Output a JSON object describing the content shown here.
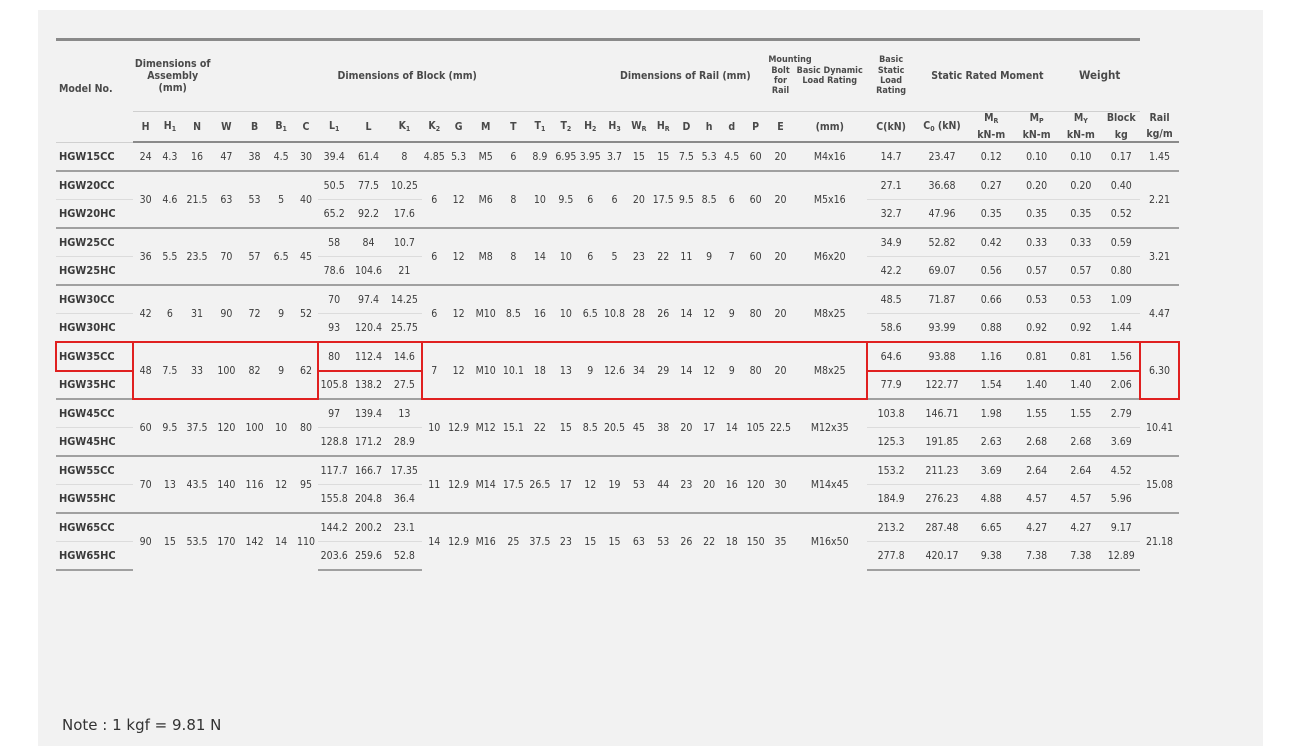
{
  "header": {
    "model_no": "Model No.",
    "assembly": "Dimensions of Assembly (mm)",
    "block": "Dimensions of Block (mm)",
    "rail": "Dimensions of Rail (mm)",
    "bolt": "Mounting Bolt for Rail",
    "dynamic": "Basic Dynamic Load Rating",
    "static": "Basic Static Load Rating",
    "moment": "Static Rated Moment",
    "weight": "Weight",
    "bolt_unit": "(mm)",
    "dynamic_unit": "C(kN)",
    "static_unit": "C0 (kN)",
    "moment_unit": "kN-m",
    "block_label": "Block",
    "rail_label": "Rail",
    "block_unit": "kg",
    "rail_unit": "kg/m",
    "cols": [
      "H",
      "H1",
      "N",
      "W",
      "B",
      "B1",
      "C",
      "L1",
      "L",
      "K1",
      "K2",
      "G",
      "M",
      "T",
      "T1",
      "T2",
      "H2",
      "H3",
      "WR",
      "HR",
      "D",
      "h",
      "d",
      "P",
      "E"
    ],
    "moments": [
      "MR",
      "MP",
      "MY"
    ]
  },
  "groups": [
    {
      "shared": [
        "24",
        "4.3",
        "16",
        "47",
        "38",
        "4.5",
        "30"
      ],
      "shared2": [
        "4.85",
        "5.3",
        "M5",
        "6",
        "8.9",
        "6.95",
        "3.95",
        "3.7",
        "15",
        "15",
        "7.5",
        "5.3",
        "4.5",
        "60",
        "20",
        "M4x16"
      ],
      "rail_wt": "1.45",
      "rows": [
        {
          "model": "HGW15CC",
          "L1": "39.4",
          "L": "61.4",
          "K1": "8",
          "C": "14.7",
          "C0": "23.47",
          "MR": "0.12",
          "MP": "0.10",
          "MY": "0.10",
          "block": "0.17"
        }
      ]
    },
    {
      "shared": [
        "30",
        "4.6",
        "21.5",
        "63",
        "53",
        "5",
        "40"
      ],
      "shared2": [
        "6",
        "12",
        "M6",
        "8",
        "10",
        "9.5",
        "6",
        "6",
        "20",
        "17.5",
        "9.5",
        "8.5",
        "6",
        "60",
        "20",
        "M5x16"
      ],
      "rail_wt": "2.21",
      "rows": [
        {
          "model": "HGW20CC",
          "L1": "50.5",
          "L": "77.5",
          "K1": "10.25",
          "C": "27.1",
          "C0": "36.68",
          "MR": "0.27",
          "MP": "0.20",
          "MY": "0.20",
          "block": "0.40"
        },
        {
          "model": "HGW20HC",
          "L1": "65.2",
          "L": "92.2",
          "K1": "17.6",
          "C": "32.7",
          "C0": "47.96",
          "MR": "0.35",
          "MP": "0.35",
          "MY": "0.35",
          "block": "0.52"
        }
      ]
    },
    {
      "shared": [
        "36",
        "5.5",
        "23.5",
        "70",
        "57",
        "6.5",
        "45"
      ],
      "shared2": [
        "6",
        "12",
        "M8",
        "8",
        "14",
        "10",
        "6",
        "5",
        "23",
        "22",
        "11",
        "9",
        "7",
        "60",
        "20",
        "M6x20"
      ],
      "rail_wt": "3.21",
      "rows": [
        {
          "model": "HGW25CC",
          "L1": "58",
          "L": "84",
          "K1": "10.7",
          "C": "34.9",
          "C0": "52.82",
          "MR": "0.42",
          "MP": "0.33",
          "MY": "0.33",
          "block": "0.59"
        },
        {
          "model": "HGW25HC",
          "L1": "78.6",
          "L": "104.6",
          "K1": "21",
          "C": "42.2",
          "C0": "69.07",
          "MR": "0.56",
          "MP": "0.57",
          "MY": "0.57",
          "block": "0.80"
        }
      ]
    },
    {
      "shared": [
        "42",
        "6",
        "31",
        "90",
        "72",
        "9",
        "52"
      ],
      "shared2": [
        "6",
        "12",
        "M10",
        "8.5",
        "16",
        "10",
        "6.5",
        "10.8",
        "28",
        "26",
        "14",
        "12",
        "9",
        "80",
        "20",
        "M8x25"
      ],
      "rail_wt": "4.47",
      "rows": [
        {
          "model": "HGW30CC",
          "L1": "70",
          "L": "97.4",
          "K1": "14.25",
          "C": "48.5",
          "C0": "71.87",
          "MR": "0.66",
          "MP": "0.53",
          "MY": "0.53",
          "block": "1.09"
        },
        {
          "model": "HGW30HC",
          "L1": "93",
          "L": "120.4",
          "K1": "25.75",
          "C": "58.6",
          "C0": "93.99",
          "MR": "0.88",
          "MP": "0.92",
          "MY": "0.92",
          "block": "1.44"
        }
      ]
    },
    {
      "shared": [
        "48",
        "7.5",
        "33",
        "100",
        "82",
        "9",
        "62"
      ],
      "shared2": [
        "7",
        "12",
        "M10",
        "10.1",
        "18",
        "13",
        "9",
        "12.6",
        "34",
        "29",
        "14",
        "12",
        "9",
        "80",
        "20",
        "M8x25"
      ],
      "rail_wt": "6.30",
      "rows": [
        {
          "model": "HGW35CC",
          "L1": "80",
          "L": "112.4",
          "K1": "14.6",
          "C": "64.6",
          "C0": "93.88",
          "MR": "1.16",
          "MP": "0.81",
          "MY": "0.81",
          "block": "1.56"
        },
        {
          "model": "HGW35HC",
          "L1": "105.8",
          "L": "138.2",
          "K1": "27.5",
          "C": "77.9",
          "C0": "122.77",
          "MR": "1.54",
          "MP": "1.40",
          "MY": "1.40",
          "block": "2.06"
        }
      ]
    },
    {
      "shared": [
        "60",
        "9.5",
        "37.5",
        "120",
        "100",
        "10",
        "80"
      ],
      "shared2": [
        "10",
        "12.9",
        "M12",
        "15.1",
        "22",
        "15",
        "8.5",
        "20.5",
        "45",
        "38",
        "20",
        "17",
        "14",
        "105",
        "22.5",
        "M12x35"
      ],
      "rail_wt": "10.41",
      "rows": [
        {
          "model": "HGW45CC",
          "L1": "97",
          "L": "139.4",
          "K1": "13",
          "C": "103.8",
          "C0": "146.71",
          "MR": "1.98",
          "MP": "1.55",
          "MY": "1.55",
          "block": "2.79"
        },
        {
          "model": "HGW45HC",
          "L1": "128.8",
          "L": "171.2",
          "K1": "28.9",
          "C": "125.3",
          "C0": "191.85",
          "MR": "2.63",
          "MP": "2.68",
          "MY": "2.68",
          "block": "3.69"
        }
      ]
    },
    {
      "shared": [
        "70",
        "13",
        "43.5",
        "140",
        "116",
        "12",
        "95"
      ],
      "shared2": [
        "11",
        "12.9",
        "M14",
        "17.5",
        "26.5",
        "17",
        "12",
        "19",
        "53",
        "44",
        "23",
        "20",
        "16",
        "120",
        "30",
        "M14x45"
      ],
      "rail_wt": "15.08",
      "rows": [
        {
          "model": "HGW55CC",
          "L1": "117.7",
          "L": "166.7",
          "K1": "17.35",
          "C": "153.2",
          "C0": "211.23",
          "MR": "3.69",
          "MP": "2.64",
          "MY": "2.64",
          "block": "4.52"
        },
        {
          "model": "HGW55HC",
          "L1": "155.8",
          "L": "204.8",
          "K1": "36.4",
          "C": "184.9",
          "C0": "276.23",
          "MR": "4.88",
          "MP": "4.57",
          "MY": "4.57",
          "block": "5.96"
        }
      ]
    },
    {
      "shared": [
        "90",
        "15",
        "53.5",
        "170",
        "142",
        "14",
        "110"
      ],
      "shared2": [
        "14",
        "12.9",
        "M16",
        "25",
        "37.5",
        "23",
        "15",
        "15",
        "63",
        "53",
        "26",
        "22",
        "18",
        "150",
        "35",
        "M16x50"
      ],
      "rail_wt": "21.18",
      "rows": [
        {
          "model": "HGW65CC",
          "L1": "144.2",
          "L": "200.2",
          "K1": "23.1",
          "C": "213.2",
          "C0": "287.48",
          "MR": "6.65",
          "MP": "4.27",
          "MY": "4.27",
          "block": "9.17"
        },
        {
          "model": "HGW65HC",
          "L1": "203.6",
          "L": "259.6",
          "K1": "52.8",
          "C": "277.8",
          "C0": "420.17",
          "MR": "9.38",
          "MP": "7.38",
          "MY": "7.38",
          "block": "12.89"
        }
      ]
    }
  ],
  "note": "Note : 1 kgf = 9.81 N",
  "highlight_color": "#e02020"
}
